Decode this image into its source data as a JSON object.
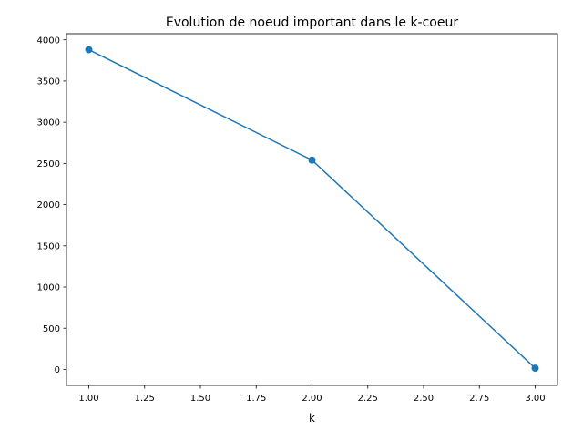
{
  "chart_data": {
    "type": "line",
    "title": "Evolution de noeud important dans le k-coeur",
    "xlabel": "k",
    "ylabel": "",
    "x": [
      1,
      2,
      3
    ],
    "series": [
      {
        "values": [
          3880,
          2540,
          15
        ],
        "color": "#1f77b4",
        "marker": "circle"
      }
    ],
    "xlim": [
      0.9,
      3.1
    ],
    "ylim": [
      -194,
      4074
    ],
    "xticks": [
      1.0,
      1.25,
      1.5,
      1.75,
      2.0,
      2.25,
      2.5,
      2.75,
      3.0
    ],
    "xtick_labels": [
      "1.00",
      "1.25",
      "1.50",
      "1.75",
      "2.00",
      "2.25",
      "2.50",
      "2.75",
      "3.00"
    ],
    "yticks": [
      0,
      500,
      1000,
      1500,
      2000,
      2500,
      3000,
      3500,
      4000
    ],
    "ytick_labels": [
      "0",
      "500",
      "1000",
      "1500",
      "2000",
      "2500",
      "3000",
      "3500",
      "4000"
    ],
    "grid": false,
    "legend": false
  }
}
